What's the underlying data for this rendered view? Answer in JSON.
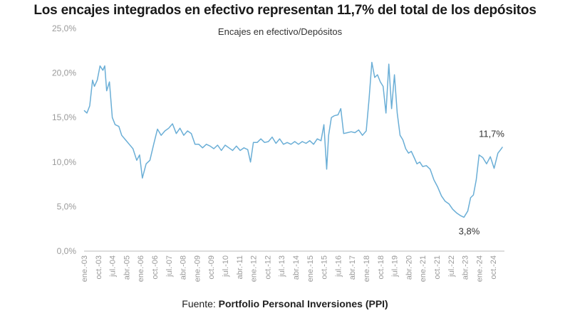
{
  "title": "Los encajes integrados en efectivo representan 11,7% del total de los depósitos",
  "source": {
    "prefix": "Fuente:",
    "name": "Portfolio Personal Inversiones (PPI)"
  },
  "colors": {
    "line": "#6aaed6",
    "text": "#1a1a1a",
    "axis": "#999999"
  },
  "chart_data": {
    "type": "line",
    "subtitle": "Encajes en efectivo/Depósitos",
    "y_tick_labels": [
      "0,0%",
      "5,0%",
      "10,0%",
      "15,0%",
      "20,0%",
      "25,0%"
    ],
    "ylim": [
      0,
      25
    ],
    "x_tick_labels": [
      "ene.-03",
      "oct.-03",
      "jul.-04",
      "abr.-05",
      "ene.-06",
      "oct.-06",
      "jul.-07",
      "abr.-08",
      "ene.-09",
      "oct.-09",
      "jul.-10",
      "abr.-11",
      "ene.-12",
      "oct.-12",
      "jul.-13",
      "abr.-14",
      "ene.-15",
      "oct.-15",
      "jul.-16",
      "abr.-17",
      "ene.-18",
      "oct.-18",
      "jul.-19",
      "abr.-20",
      "ene.-21",
      "oct.-21",
      "jul.-22",
      "abr.-23",
      "ene.-24",
      "oct.-24"
    ],
    "grid": false,
    "annotations": [
      {
        "label": "11,7%",
        "x": 2025.2,
        "y": 11.7
      },
      {
        "label": "3,8%",
        "x": 2023.55,
        "y": 3.8
      }
    ],
    "series": [
      {
        "x": [
          2003.0,
          2003.15,
          2003.3,
          2003.45,
          2003.55,
          2003.7,
          2003.85,
          2004.0,
          2004.1,
          2004.2,
          2004.35,
          2004.5,
          2004.65,
          2004.85,
          2005.0,
          2005.2,
          2005.4,
          2005.6,
          2005.8,
          2005.95,
          2006.1,
          2006.3,
          2006.5,
          2006.7,
          2006.9,
          2007.1,
          2007.3,
          2007.5,
          2007.7,
          2007.9,
          2008.1,
          2008.3,
          2008.5,
          2008.7,
          2008.9,
          2009.1,
          2009.3,
          2009.5,
          2009.7,
          2009.9,
          2010.1,
          2010.3,
          2010.5,
          2010.7,
          2010.9,
          2011.1,
          2011.3,
          2011.5,
          2011.7,
          2011.85,
          2012.0,
          2012.2,
          2012.4,
          2012.6,
          2012.8,
          2013.0,
          2013.2,
          2013.4,
          2013.6,
          2013.8,
          2014.0,
          2014.2,
          2014.4,
          2014.6,
          2014.8,
          2015.0,
          2015.2,
          2015.4,
          2015.6,
          2015.75,
          2015.9,
          2016.0,
          2016.15,
          2016.3,
          2016.5,
          2016.65,
          2016.8,
          2017.0,
          2017.2,
          2017.4,
          2017.6,
          2017.8,
          2018.0,
          2018.15,
          2018.3,
          2018.45,
          2018.6,
          2018.75,
          2018.9,
          2019.05,
          2019.2,
          2019.35,
          2019.5,
          2019.65,
          2019.8,
          2019.95,
          2020.1,
          2020.25,
          2020.4,
          2020.55,
          2020.7,
          2020.85,
          2021.0,
          2021.2,
          2021.4,
          2021.6,
          2021.8,
          2022.0,
          2022.2,
          2022.4,
          2022.6,
          2022.8,
          2023.0,
          2023.2,
          2023.4,
          2023.55,
          2023.7,
          2023.85,
          2024.0,
          2024.2,
          2024.4,
          2024.6,
          2024.8,
          2025.0,
          2025.15,
          2025.25
        ],
        "values": [
          15.8,
          15.5,
          16.3,
          19.2,
          18.5,
          19.2,
          20.8,
          20.3,
          20.8,
          18.0,
          19.0,
          15.0,
          14.2,
          14.0,
          13.0,
          12.5,
          12.0,
          11.5,
          10.2,
          10.8,
          8.2,
          9.8,
          10.2,
          12.0,
          13.7,
          13.0,
          13.5,
          13.8,
          14.3,
          13.2,
          13.8,
          13.0,
          13.5,
          13.2,
          12.0,
          12.0,
          11.6,
          12.0,
          11.8,
          11.5,
          11.9,
          11.3,
          11.9,
          11.6,
          11.3,
          11.8,
          11.3,
          11.6,
          11.4,
          10.0,
          12.2,
          12.2,
          12.6,
          12.2,
          12.3,
          12.8,
          12.1,
          12.6,
          12.0,
          12.2,
          12.0,
          12.3,
          12.0,
          12.3,
          12.1,
          12.4,
          12.0,
          12.6,
          12.4,
          14.2,
          9.2,
          13.0,
          15.0,
          15.2,
          15.3,
          16.0,
          13.2,
          13.3,
          13.4,
          13.3,
          13.6,
          13.0,
          13.5,
          17.0,
          21.2,
          19.5,
          19.8,
          19.0,
          18.5,
          15.5,
          21.0,
          16.0,
          19.8,
          15.5,
          13.0,
          12.5,
          11.5,
          11.0,
          11.2,
          10.5,
          9.8,
          10.0,
          9.5,
          9.6,
          9.2,
          8.0,
          7.2,
          6.2,
          5.6,
          5.3,
          4.7,
          4.3,
          4.0,
          3.8,
          4.5,
          6.0,
          6.3,
          8.0,
          10.8,
          10.5,
          9.8,
          10.6,
          9.3,
          11.0,
          11.4,
          11.7
        ]
      }
    ]
  }
}
